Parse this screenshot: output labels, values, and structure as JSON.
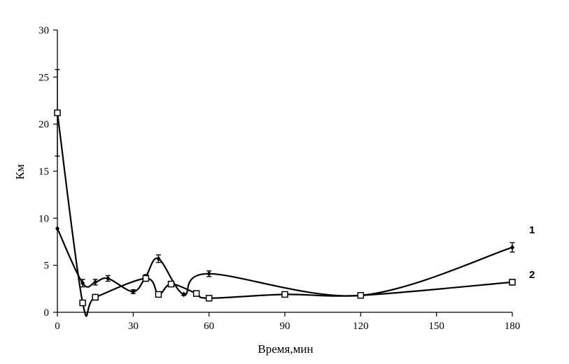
{
  "chart_data": {
    "type": "line",
    "title": "",
    "xlabel": "Время,мин",
    "ylabel": "Км",
    "xlim": [
      0,
      180
    ],
    "ylim": [
      0,
      30
    ],
    "xticks": [
      "0",
      "30",
      "60",
      "90",
      "120",
      "150",
      "180"
    ],
    "yticks": [
      "0",
      "5",
      "10",
      "15",
      "20",
      "25",
      "30"
    ],
    "grid": false,
    "legend": "none",
    "series": [
      {
        "label": "1",
        "marker": "diamond",
        "color": "#000000",
        "points": [
          {
            "x": 0,
            "y": 8.9,
            "err": 0
          },
          {
            "x": 10,
            "y": 3.1,
            "err": 0.4
          },
          {
            "x": 15,
            "y": 3.2,
            "err": 0.3
          },
          {
            "x": 20,
            "y": 3.6,
            "err": 0.3
          },
          {
            "x": 30,
            "y": 2.2,
            "err": 0.2
          },
          {
            "x": 35,
            "y": 3.8,
            "err": 0.2
          },
          {
            "x": 40,
            "y": 5.7,
            "err": 0.4
          },
          {
            "x": 50,
            "y": 1.9,
            "err": 0.1
          },
          {
            "x": 60,
            "y": 4.1,
            "err": 0.3
          },
          {
            "x": 120,
            "y": 1.8,
            "err": 0.1
          },
          {
            "x": 180,
            "y": 6.9,
            "err": 0.5
          }
        ]
      },
      {
        "label": "2",
        "marker": "square",
        "color": "#000000",
        "points": [
          {
            "x": 0,
            "y": 21.2,
            "err": 4.6
          },
          {
            "x": 10,
            "y": 1.0,
            "err": 0.2
          },
          {
            "x": 15,
            "y": 1.6,
            "err": 0.3
          },
          {
            "x": 35,
            "y": 3.6,
            "err": 0.3
          },
          {
            "x": 40,
            "y": 1.9,
            "err": 0.2
          },
          {
            "x": 45,
            "y": 3.0,
            "err": 0.2
          },
          {
            "x": 55,
            "y": 2.0,
            "err": 0.2
          },
          {
            "x": 60,
            "y": 1.5,
            "err": 0.1
          },
          {
            "x": 90,
            "y": 1.9,
            "err": 0.1
          },
          {
            "x": 120,
            "y": 1.8,
            "err": 0.1
          },
          {
            "x": 180,
            "y": 3.2,
            "err": 0.3
          }
        ]
      }
    ]
  }
}
